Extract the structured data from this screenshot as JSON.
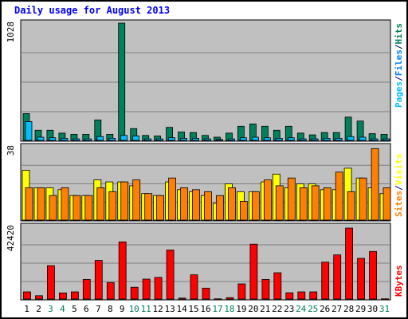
{
  "chart_data": {
    "type": "bar",
    "title": "Daily usage for August 2013",
    "categories": [
      "1",
      "2",
      "3",
      "4",
      "5",
      "6",
      "7",
      "8",
      "9",
      "10",
      "11",
      "12",
      "13",
      "14",
      "15",
      "16",
      "17",
      "18",
      "19",
      "20",
      "21",
      "22",
      "23",
      "24",
      "25",
      "26",
      "27",
      "28",
      "29",
      "30",
      "31"
    ],
    "weekend_days": [
      "3",
      "4",
      "10",
      "11",
      "17",
      "18",
      "24",
      "25",
      "31"
    ],
    "panels": [
      {
        "id": "hits",
        "ymax_label": "1028",
        "ymax": 1028,
        "legend": [
          "Pages",
          "/",
          "Files",
          "/",
          "Hits"
        ],
        "series": [
          {
            "name": "Hits",
            "color": "#00805C",
            "values": [
              240,
              95,
              95,
              70,
              60,
              60,
              185,
              60,
              1028,
              110,
              50,
              45,
              120,
              80,
              75,
              50,
              35,
              70,
              130,
              150,
              130,
              95,
              130,
              70,
              55,
              75,
              75,
              210,
              175,
              65,
              60
            ]
          },
          {
            "name": "Files",
            "color": "#00C0FF",
            "values": [
              170,
              35,
              30,
              25,
              20,
              20,
              40,
              25,
              50,
              45,
              20,
              20,
              30,
              25,
              25,
              20,
              15,
              20,
              30,
              35,
              30,
              25,
              30,
              20,
              20,
              25,
              25,
              40,
              35,
              20,
              20
            ]
          },
          {
            "name": "Pages",
            "color": "#00C0FF",
            "values": [
              0,
              0,
              0,
              0,
              0,
              0,
              0,
              0,
              0,
              0,
              0,
              0,
              0,
              0,
              0,
              0,
              0,
              0,
              0,
              0,
              0,
              0,
              0,
              0,
              0,
              0,
              0,
              0,
              0,
              0,
              0
            ]
          }
        ]
      },
      {
        "id": "visits",
        "ymax_label": "38",
        "ymax": 38,
        "legend": [
          "Sites",
          "/",
          "Visits"
        ],
        "series": [
          {
            "name": "Visits",
            "color": "#FFFF00",
            "values": [
              26,
              17,
              17,
              16,
              13,
              13,
              21,
              20,
              20,
              18,
              14,
              13,
              20,
              16,
              15,
              13,
              9,
              19,
              15,
              15,
              20,
              24,
              17,
              19,
              19,
              16,
              16,
              27,
              22,
              17,
              14
            ]
          },
          {
            "name": "Sites",
            "color": "#FF8000",
            "values": [
              17,
              17,
              13,
              17,
              13,
              13,
              17,
              15,
              20,
              21,
              14,
              13,
              22,
              17,
              16,
              15,
              13,
              17,
              10,
              15,
              21,
              18,
              22,
              17,
              18,
              17,
              25,
              15,
              22,
              37,
              17
            ]
          }
        ]
      },
      {
        "id": "kbytes",
        "ymax_label": "42420",
        "ymax": 42420,
        "legend": [
          "KBytes"
        ],
        "series": [
          {
            "name": "KBytes",
            "color": "#FF0000",
            "values": [
              4600,
              2400,
              19800,
              4000,
              4600,
              11800,
              22800,
              10000,
              33500,
              7300,
              12000,
              13000,
              28800,
              1000,
              14500,
              6800,
              600,
              1300,
              9200,
              32200,
              11800,
              15700,
              4100,
              4600,
              4600,
              21800,
              26000,
              41500,
              24000,
              28000,
              600
            ]
          }
        ]
      }
    ]
  }
}
